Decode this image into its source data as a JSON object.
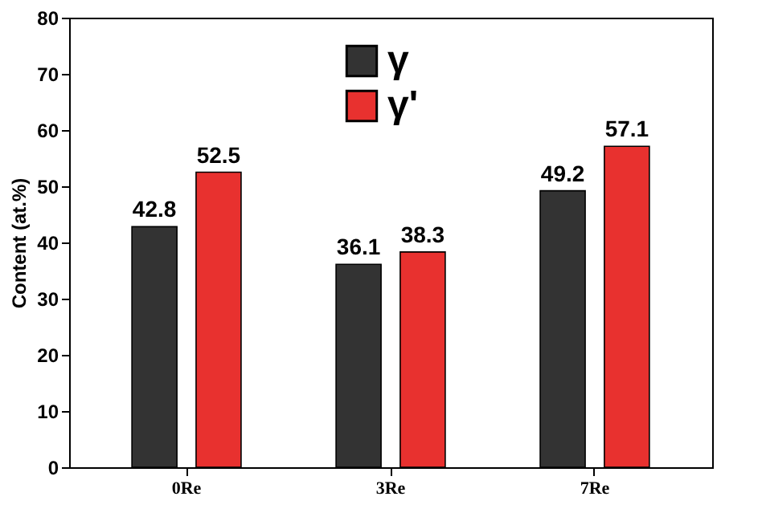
{
  "chart_data": {
    "type": "bar",
    "ylabel": "Content (at.%)",
    "categories": [
      "0Re",
      "3Re",
      "7Re"
    ],
    "series": [
      {
        "name": "γ",
        "color": "#333333",
        "values": [
          42.8,
          36.1,
          49.2
        ]
      },
      {
        "name": "γ'",
        "color": "#e8312f",
        "values": [
          52.5,
          38.3,
          57.1
        ]
      }
    ],
    "ylim": [
      0,
      80
    ],
    "yticks": [
      0,
      10,
      20,
      30,
      40,
      50,
      60,
      70,
      80
    ],
    "data_labels": true,
    "legend": "top",
    "grid": false
  }
}
